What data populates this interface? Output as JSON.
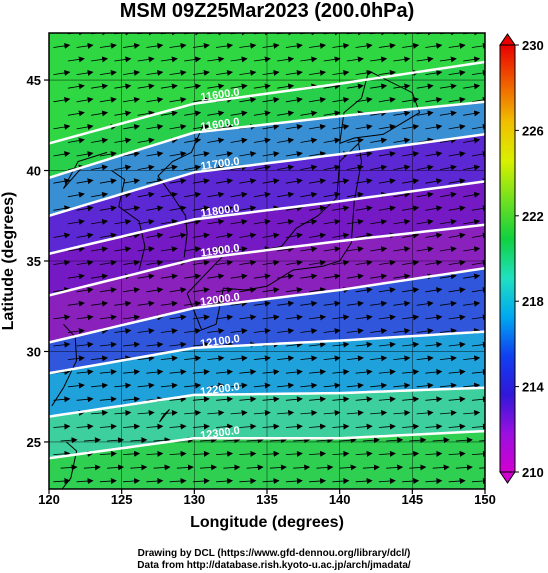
{
  "chart_data": {
    "type": "heatmap",
    "title": "MSM 09Z25Mar2023 (200.0hPa)",
    "xlabel": "Longitude (degrees)",
    "ylabel": "Latitude  (degrees)",
    "xlim": [
      120,
      150
    ],
    "ylim": [
      22.4,
      47.6
    ],
    "x_ticks": [
      120,
      125,
      130,
      135,
      140,
      145,
      150
    ],
    "y_ticks": [
      25,
      30,
      35,
      40,
      45
    ],
    "colorbar": {
      "min": 210,
      "max": 230,
      "ticks": [
        210,
        214,
        218,
        222,
        226,
        230
      ],
      "colors": [
        "#d000d0",
        "#9a10e0",
        "#3018d8",
        "#1040f0",
        "#00a8f0",
        "#20e0c0",
        "#10d040",
        "#70e020",
        "#d8f000",
        "#f0c000",
        "#f06000",
        "#e80000"
      ]
    },
    "contours": [
      {
        "label": "11600.0",
        "lat_at_lon": [
          [
            120,
            41.5
          ],
          [
            130,
            43.7
          ],
          [
            140,
            44.8
          ],
          [
            150,
            46.0
          ]
        ]
      },
      {
        "label": "11600.0",
        "lat_at_lon": [
          [
            120,
            39.6
          ],
          [
            130,
            42.1
          ],
          [
            140,
            43.0
          ],
          [
            150,
            43.8
          ]
        ]
      },
      {
        "label": "11700.0",
        "lat_at_lon": [
          [
            120,
            37.5
          ],
          [
            130,
            39.9
          ],
          [
            140,
            40.9
          ],
          [
            150,
            42.0
          ]
        ]
      },
      {
        "label": "11800.0",
        "lat_at_lon": [
          [
            120,
            35.4
          ],
          [
            130,
            37.3
          ],
          [
            140,
            38.3
          ],
          [
            150,
            39.4
          ]
        ]
      },
      {
        "label": "11900.0",
        "lat_at_lon": [
          [
            120,
            33.1
          ],
          [
            130,
            35.1
          ],
          [
            140,
            36.1
          ],
          [
            150,
            37.0
          ]
        ]
      },
      {
        "label": "12000.0",
        "lat_at_lon": [
          [
            120,
            30.5
          ],
          [
            130,
            32.4
          ],
          [
            140,
            33.4
          ],
          [
            150,
            34.6
          ]
        ]
      },
      {
        "label": "12100.0",
        "lat_at_lon": [
          [
            120,
            28.8
          ],
          [
            130,
            30.2
          ],
          [
            140,
            30.6
          ],
          [
            150,
            31.1
          ]
        ]
      },
      {
        "label": "12200.0",
        "lat_at_lon": [
          [
            120,
            26.4
          ],
          [
            130,
            27.6
          ],
          [
            140,
            27.7
          ],
          [
            150,
            28.0
          ]
        ]
      },
      {
        "label": "12300.0",
        "lat_at_lon": [
          [
            120,
            24.1
          ],
          [
            130,
            25.2
          ],
          [
            140,
            25.2
          ],
          [
            150,
            25.6
          ]
        ]
      }
    ]
  },
  "credits": {
    "line1": "Drawing by DCL (https://www.gfd-dennou.org/library/dcl/)",
    "line2": "Data from http://database.rish.kyoto-u.ac.jp/arch/jmadata/"
  }
}
